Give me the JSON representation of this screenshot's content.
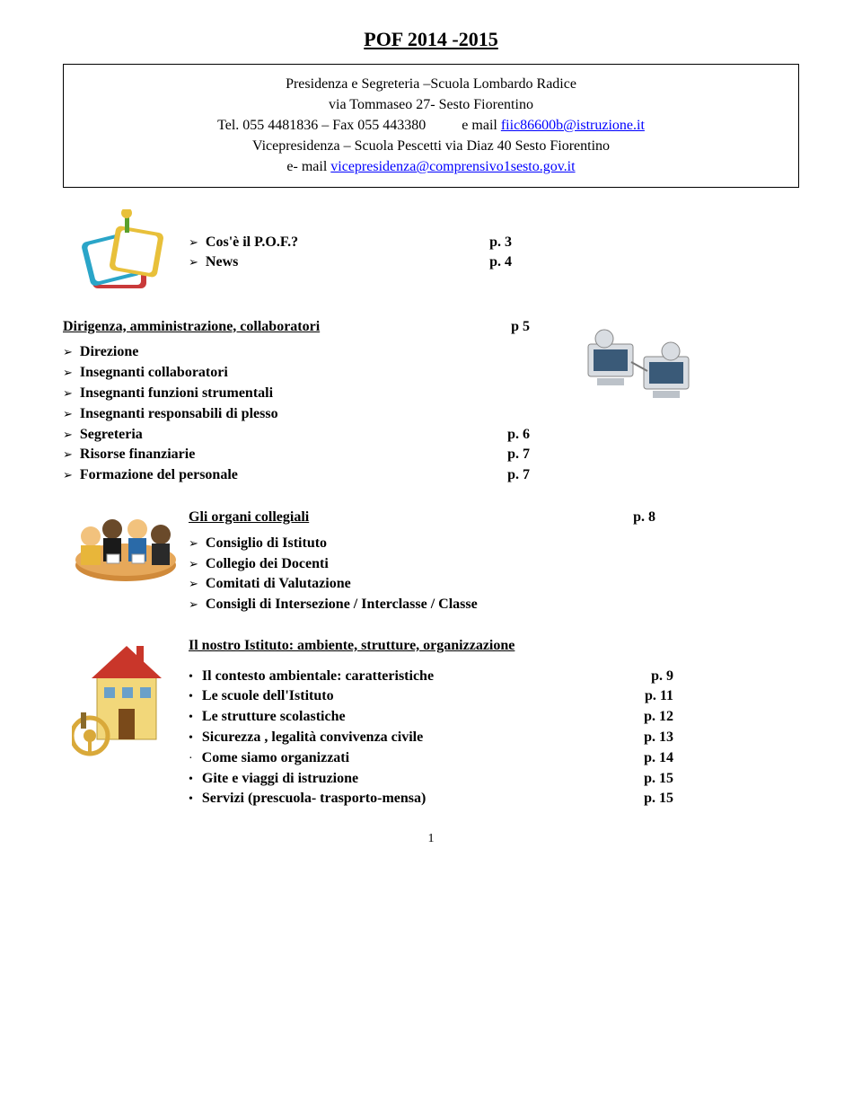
{
  "title": "POF  2014 -2015",
  "header": {
    "line1": "Presidenza e Segreteria –Scuola Lombardo Radice",
    "line2": "via Tommaseo 27-  Sesto Fiorentino",
    "line3_left": "Tel. 055 4481836 – Fax 055 443380",
    "line3_mid": "e mail ",
    "line3_link": "fiic86600b@istruzione.it",
    "line4": "Vicepresidenza – Scuola Pescetti via Diaz 40 Sesto Fiorentino",
    "line5_left": "e- mail  ",
    "line5_link": "vicepresidenza@comprensivo1sesto.gov.it"
  },
  "section1": {
    "items": [
      {
        "label": "Cos'è il P.O.F.?",
        "page": "p. 3"
      },
      {
        "label": "News",
        "page": "p. 4"
      }
    ]
  },
  "section2": {
    "heading": "Dirigenza, amministrazione, collaboratori",
    "heading_page": "p 5",
    "items_no_page": [
      "Direzione",
      "Insegnanti collaboratori",
      "Insegnanti funzioni strumentali",
      "Insegnanti responsabili di plesso"
    ],
    "items_with_page": [
      {
        "label": "Segreteria",
        "page": "p. 6"
      },
      {
        "label": "Risorse finanziarie",
        "page": "p. 7"
      },
      {
        "label": "Formazione del personale",
        "page": "p. 7"
      }
    ]
  },
  "section3": {
    "heading": "Gli organi collegiali",
    "heading_page": "p. 8",
    "items": [
      "Consiglio di Istituto",
      "Collegio dei Docenti",
      "Comitati di Valutazione",
      "Consigli di Intersezione / Interclasse / Classe"
    ]
  },
  "section4": {
    "heading": "Il nostro Istituto: ambiente, strutture, organizzazione",
    "items": [
      {
        "label": "Il contesto ambientale: caratteristiche",
        "page": "p.  9",
        "dot": true
      },
      {
        "label": "Le scuole dell'Istituto",
        "page": "p. 11",
        "dot": true
      },
      {
        "label": "Le strutture scolastiche",
        "page": "p. 12",
        "dot": true
      },
      {
        "label": "Sicurezza      , legalità convivenza civile",
        "page": "p. 13",
        "dot": true
      },
      {
        "label": "Come siamo organizzati",
        "page": "p. 14",
        "dot": false
      },
      {
        "label": "Gite e viaggi di istruzione",
        "page": "p. 15",
        "dot": true
      },
      {
        "label": "Servizi (prescuola- trasporto-mensa)",
        "page": "p. 15",
        "dot": true
      }
    ]
  },
  "page_number": "1",
  "colors": {
    "link": "#0000ff",
    "text": "#000000",
    "bg": "#ffffff"
  }
}
